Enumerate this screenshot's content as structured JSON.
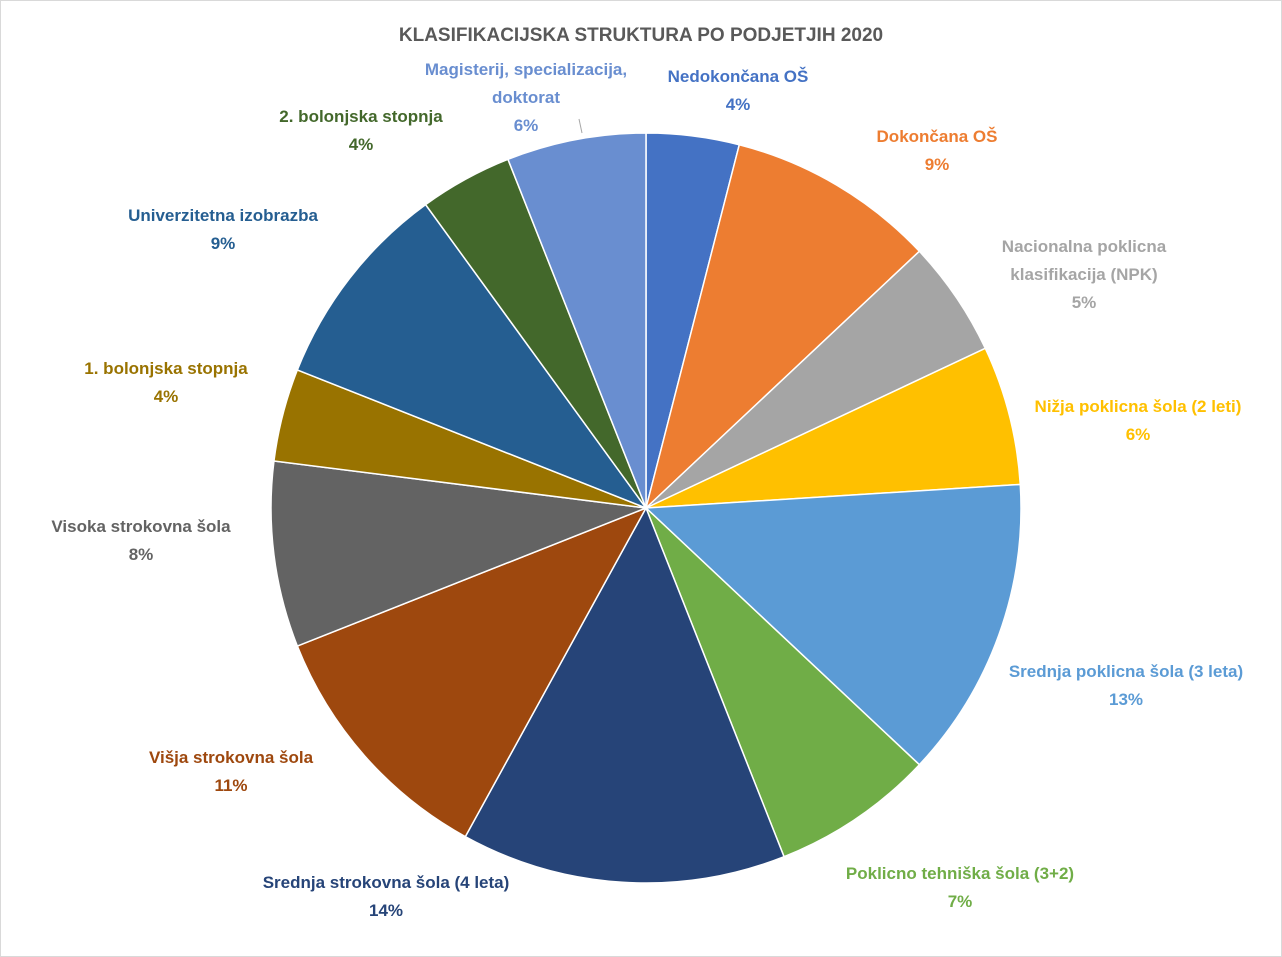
{
  "chart_data": {
    "type": "pie",
    "title": "KLASIFIKACIJSKA STRUKTURA PO PODJETJIH 2020",
    "categories": [
      "Nedokončana OŠ",
      "Dokončana OŠ",
      "Nacionalna poklicna klasifikacija (NPK)",
      "Nižja poklicna šola (2 leti)",
      "Srednja poklicna šola (3 leta)",
      "Poklicno tehniška šola (3+2)",
      "Srednja strokovna šola (4 leta)",
      "Višja strokovna šola",
      "Visoka strokovna šola",
      "1. bolonjska stopnja",
      "Univerzitetna izobrazba",
      "2. bolonjska stopnja",
      "Magisterij, specializacija, doktorat"
    ],
    "values": [
      4,
      9,
      5,
      6,
      13,
      7,
      14,
      11,
      8,
      4,
      9,
      4,
      6
    ],
    "value_labels": [
      "4%",
      "9%",
      "5%",
      "6%",
      "13%",
      "7%",
      "14%",
      "11%",
      "8%",
      "4%",
      "9%",
      "4%",
      "6%"
    ],
    "colors": [
      "#4472c4",
      "#ed7d31",
      "#a5a5a5",
      "#ffc000",
      "#5b9bd5",
      "#70ad47",
      "#264478",
      "#9e480e",
      "#636363",
      "#997300",
      "#255e91",
      "#43682b",
      "#698ed0"
    ]
  }
}
